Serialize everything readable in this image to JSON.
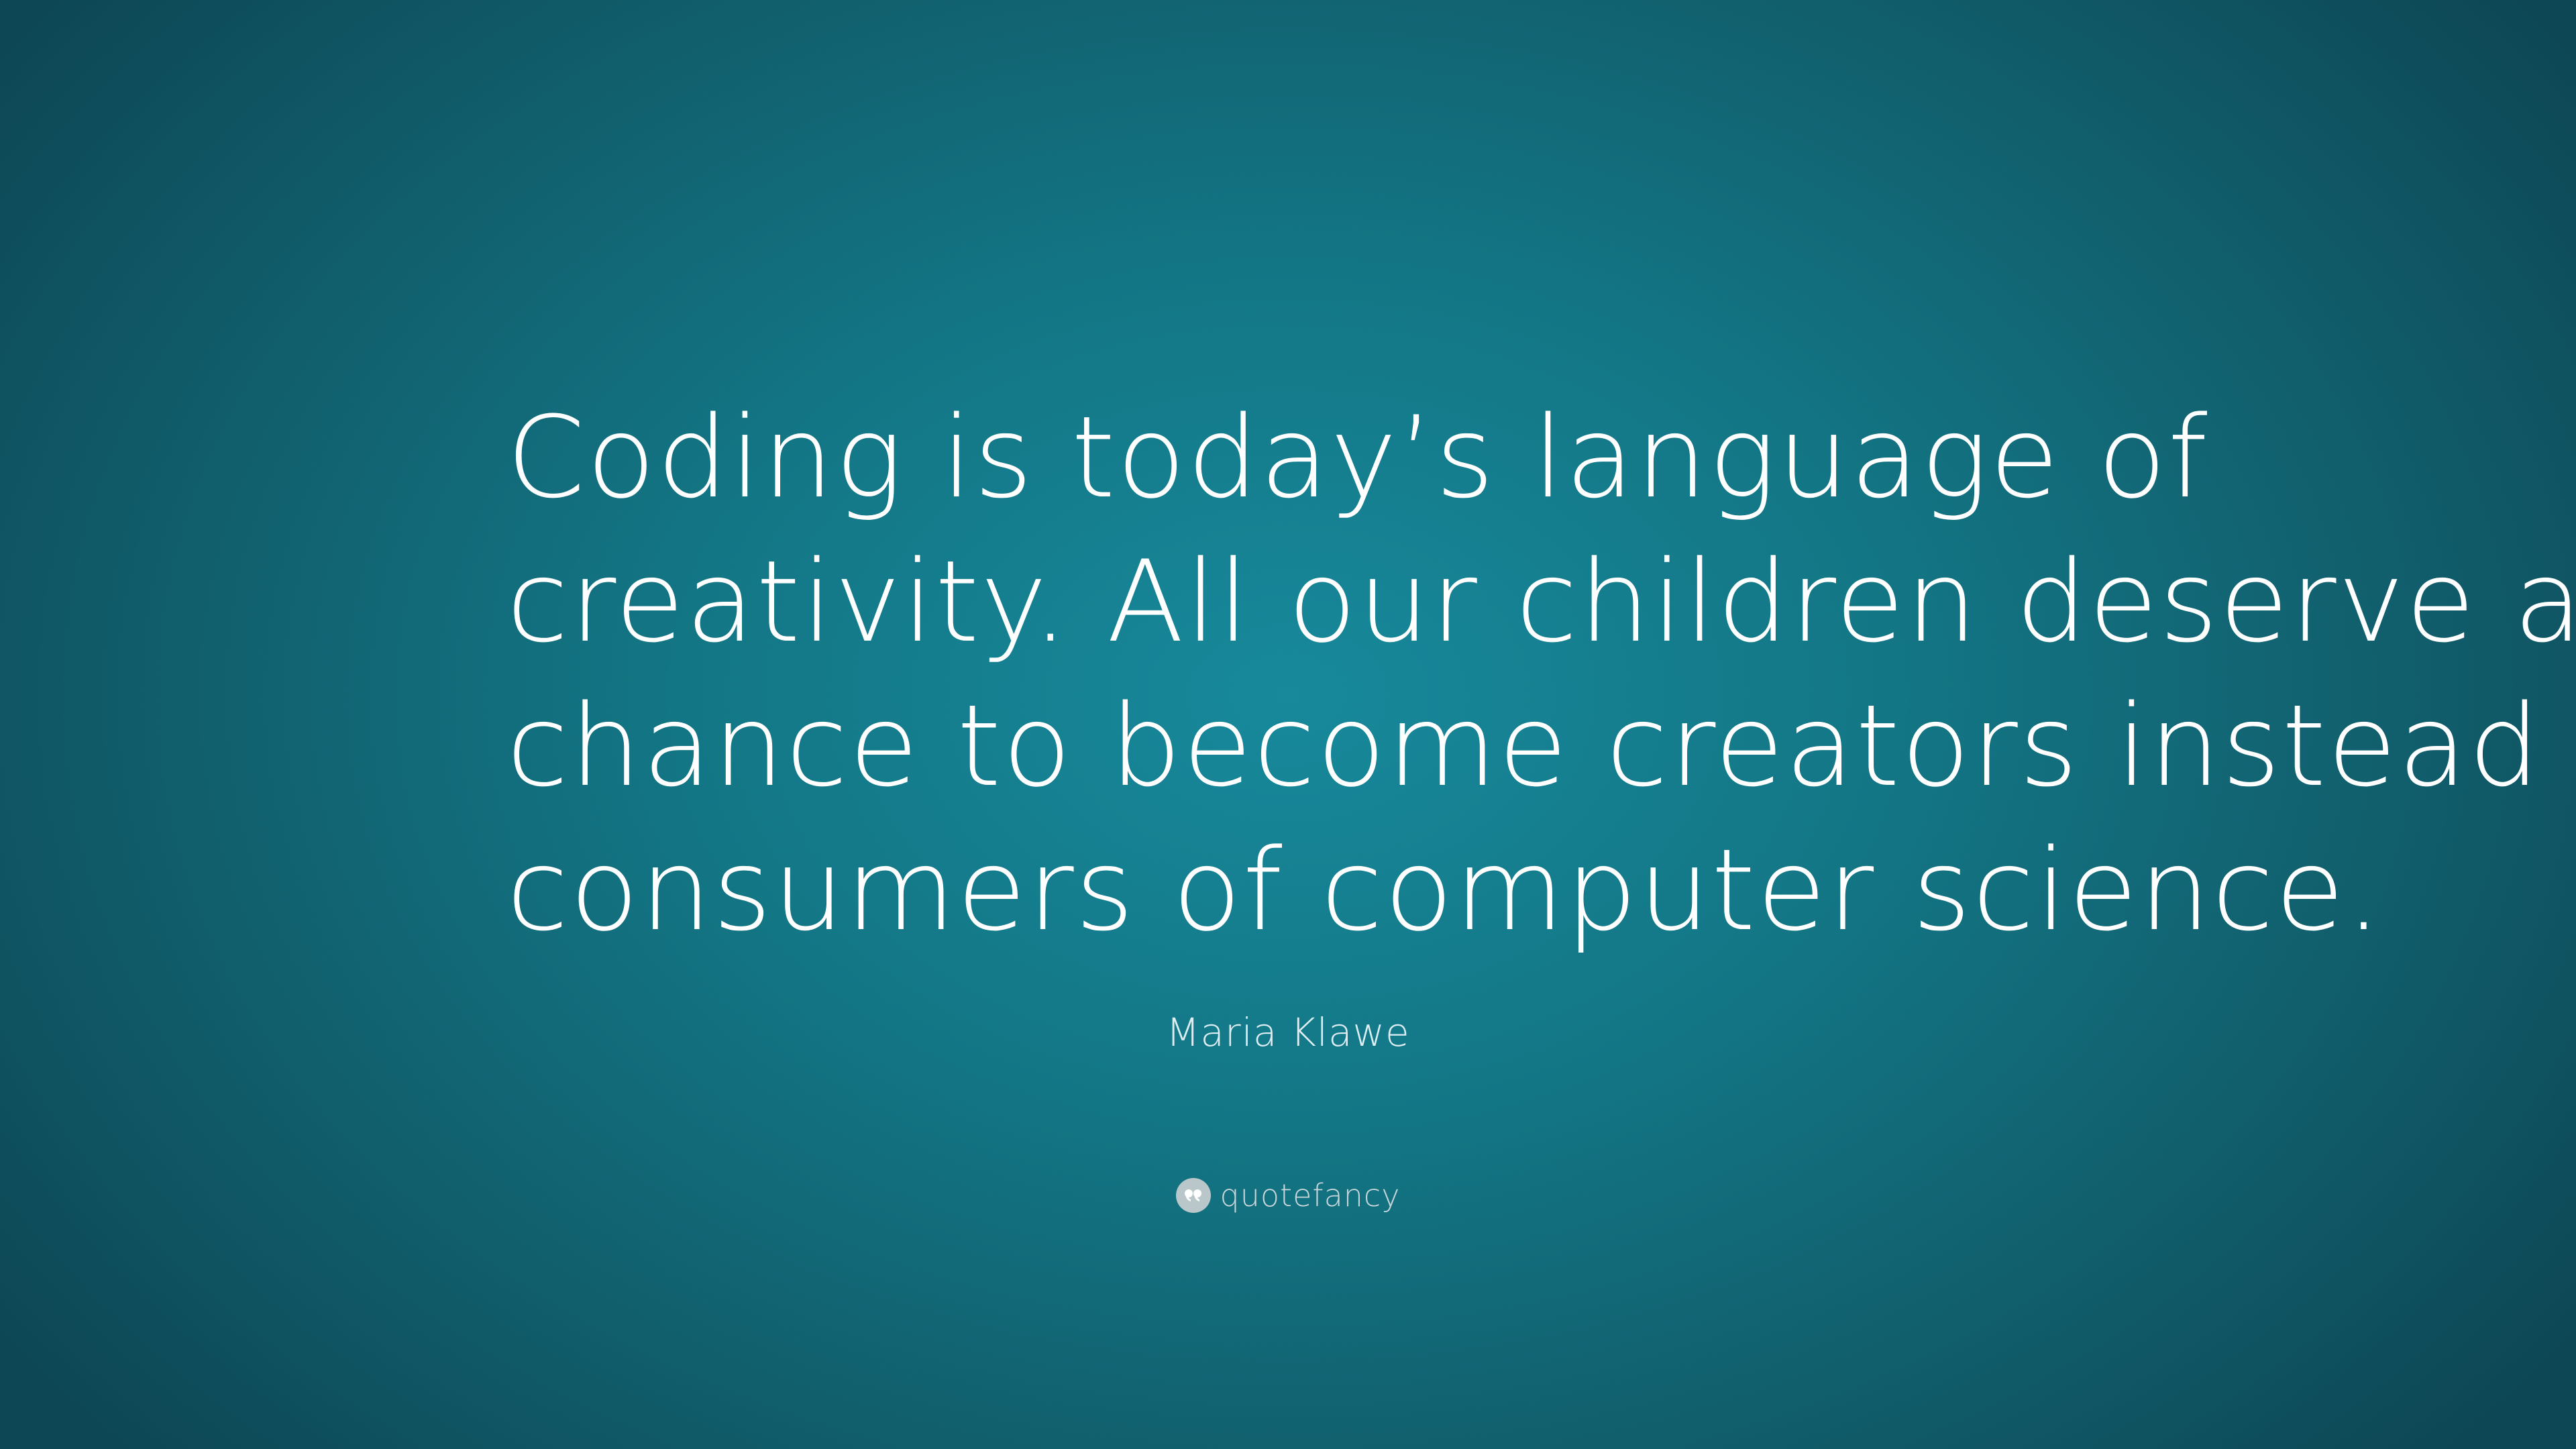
{
  "quote": {
    "lines": [
      "Coding is today’s language of",
      "creativity. All our children deserve a",
      "chance to become creators instead",
      "consumers of computer science."
    ]
  },
  "author": "Maria Klawe",
  "brand": {
    "name": "quotefancy",
    "icon": "quote-mark-icon"
  }
}
